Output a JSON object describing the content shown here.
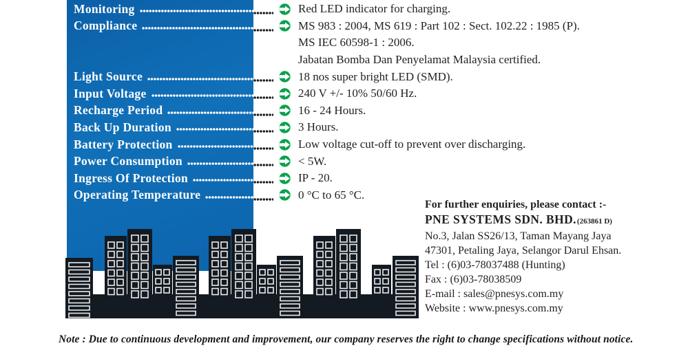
{
  "specs": [
    {
      "label": "Monitoring",
      "values": [
        "Red LED indicator for charging."
      ]
    },
    {
      "label": "Compliance",
      "values": [
        "MS 983 : 2004, MS 619 : Part 102 : Sect. 102.22 : 1985 (P).",
        "MS IEC 60598-1 : 2006.",
        "Jabatan Bomba Dan Penyelamat Malaysia certified."
      ]
    },
    {
      "label": "Light Source",
      "values": [
        "18 nos super bright LED (SMD)."
      ]
    },
    {
      "label": "Input Voltage",
      "values": [
        "240 V +/-  10% 50/60 Hz."
      ]
    },
    {
      "label": "Recharge Period",
      "values": [
        "16 - 24 Hours."
      ]
    },
    {
      "label": "Back Up Duration",
      "values": [
        "3 Hours."
      ]
    },
    {
      "label": "Battery Protection",
      "values": [
        "Low voltage cut-off to prevent over discharging."
      ]
    },
    {
      "label": "Power Consumption",
      "values": [
        "< 5W."
      ]
    },
    {
      "label": "Ingress Of Protection",
      "values": [
        "IP - 20."
      ]
    },
    {
      "label": "Operating Temperature",
      "values": [
        "0 °C to 65 °C."
      ]
    }
  ],
  "contact": {
    "heading": "For further enquiries, please contact :-",
    "company": "PNE SYSTEMS SDN. BHD.",
    "company_reg": "(263861 D)",
    "address_line1": "No.3, Jalan SS26/13, Taman Mayang Jaya",
    "address_line2": "47301, Petaling Jaya, Selangor Darul Ehsan.",
    "tel": "Tel : (6)03-78037488 (Hunting)",
    "fax": "Fax : (6)03-78038509",
    "email": "E-mail : sales@pnesys.com.my",
    "website": "Website : www.pnesys.com.my"
  },
  "note": "Note : Due to continuous development and improvement, our company reserves the right to change specifications without notice.",
  "icons": {
    "bullet": "arrow-right-circle-icon"
  },
  "colors": {
    "panel_blue": "#0e68b2",
    "arrow_green": "#0aa14e",
    "building": "#131a22",
    "window_frame": "#ececec",
    "text": "#231f20"
  }
}
